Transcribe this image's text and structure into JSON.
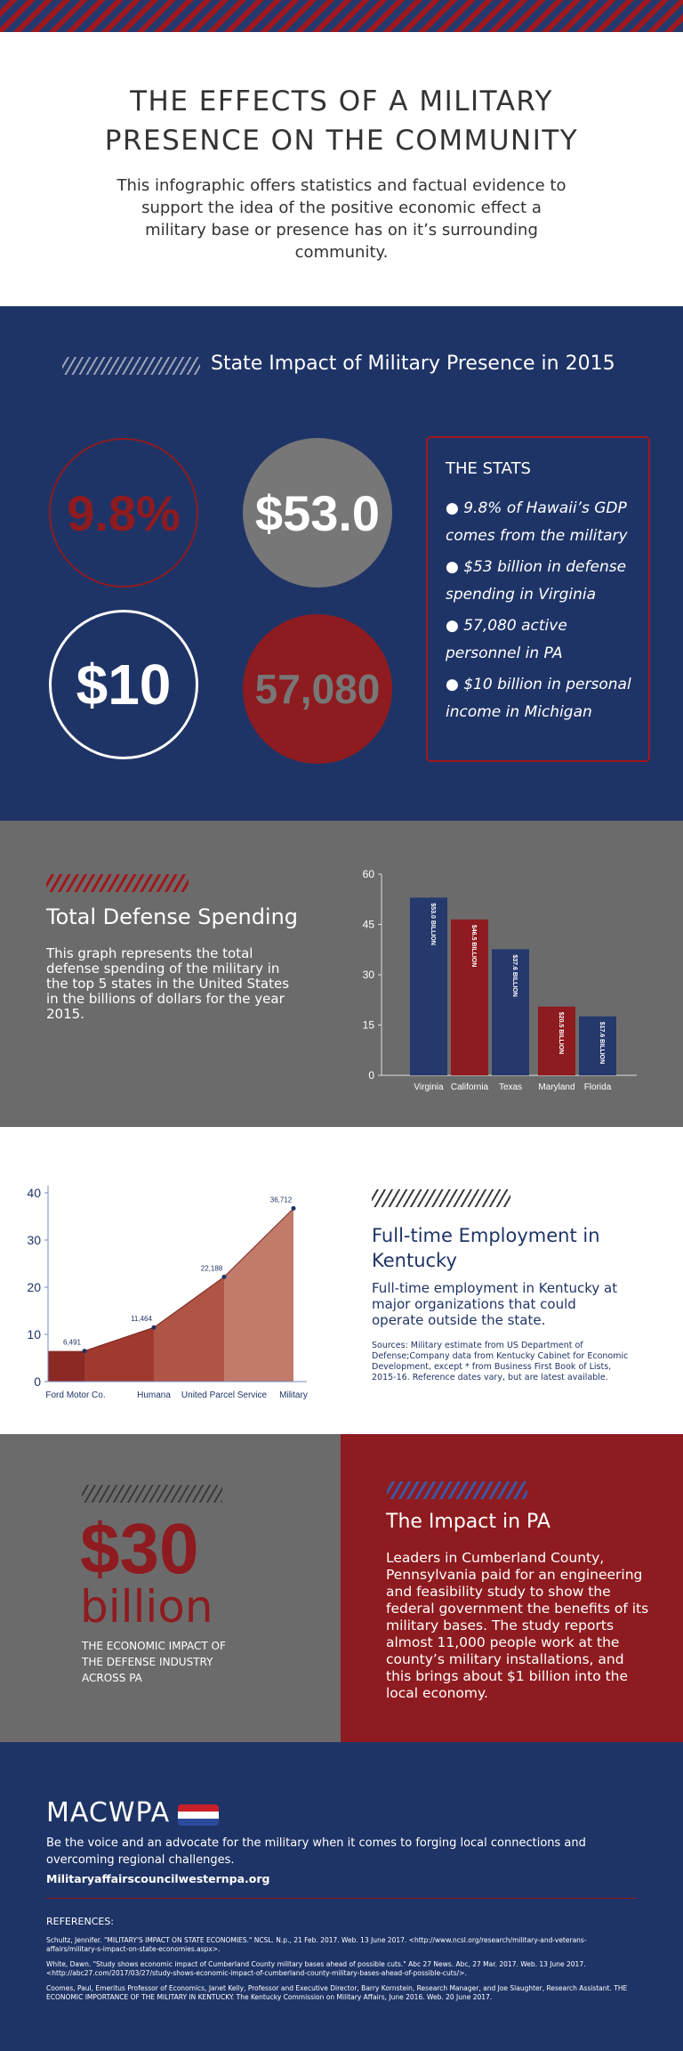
{
  "header": {
    "title": "THE EFFECTS OF A MILITARY PRESENCE ON THE COMMUNITY",
    "intro": "This infographic offers statistics and factual evidence to support the idea of the positive economic effect a military base or presence has on it’s surrounding community."
  },
  "state_impact": {
    "heading": "State Impact of Military Presence in 2015",
    "circles": [
      "9.8%",
      "$53.0",
      "$10",
      "57,080"
    ],
    "stats_title": "THE STATS",
    "stats": [
      "● 9.8% of Hawaii’s GDP comes from the military",
      "● $53 billion in defense spending in Virginia",
      "● 57,080 active personnel in PA",
      "● $10 billion in personal income in Michigan"
    ]
  },
  "defense": {
    "title": "Total Defense Spending",
    "text": "This graph represents the total defense spending of the military in the top 5 states in the United  States in the billions of dollars for the year 2015."
  },
  "chart_data": [
    {
      "type": "bar",
      "categories": [
        "Virginia",
        "California",
        "Texas",
        "Maryland",
        "Florida"
      ],
      "values": [
        53.0,
        46.5,
        37.6,
        20.5,
        17.6
      ],
      "value_labels": [
        "$53.0 BILLION",
        "$46.5 BILLION",
        "$37.6 BILLION",
        "$20.5 BILLION",
        "$17.6 BILLION"
      ],
      "colors": [
        "#25396d",
        "#8e1b1f",
        "#25396d",
        "#8e1b1f",
        "#25396d"
      ],
      "ylim": [
        0,
        60
      ],
      "yticks": [
        0,
        15,
        30,
        45,
        60
      ]
    },
    {
      "type": "area",
      "categories": [
        "Ford Motor Co.",
        "Humana",
        "United Parcel Service",
        "Military"
      ],
      "values": [
        6.491,
        11.464,
        22.188,
        36.712
      ],
      "value_labels": [
        "6,491",
        "11,464",
        "22,188",
        "36,712"
      ],
      "colors": [
        "#8b2a24",
        "#a03a2f",
        "#b05545",
        "#c27b6a"
      ],
      "ylim": [
        0,
        40
      ],
      "yticks": [
        0,
        10,
        20,
        30,
        40
      ]
    }
  ],
  "employment": {
    "title": "Full-time Employment in Kentucky",
    "text": "Full-time employment in Kentucky at major organizations that could operate outside the state.",
    "sources": "Sources: Military estimate from US Department of Defense;Company data from Kentucky Cabinet for Economic Development, except * from Business First Book of Lists, 2015-16. Reference dates vary, but are latest available."
  },
  "pa": {
    "amount": "$30",
    "unit": "billion",
    "caption": "THE ECONOMIC IMPACT OF THE DEFENSE INDUSTRY ACROSS PA",
    "title": "The Impact in PA",
    "text": "Leaders in Cumberland County, Pennsylvania paid for an engineering and feasibility study to show the federal government the benefits of its military bases. The study reports almost 11,000 people work at the county’s military installations, and this brings about $1 billion into the local economy."
  },
  "footer": {
    "logo": "MACWPA",
    "tagline": "Be the voice and an advocate for the military when it comes to forging local connections and overcoming regional challenges.",
    "url": "Militaryaffairscouncilwesternpa.org",
    "references_title": "REFERENCES:",
    "references": [
      "Schultz, Jennifer. \"MILITARY'S IMPACT ON STATE ECONOMIES.\" NCSL. N.p., 21 Feb. 2017. Web. 13 June 2017. <http://www.ncsl.org/research/military-and-veterans-affairs/military-s-impact-on-state-economies.aspx>.",
      "White, Dawn. \"Study shows economic impact of Cumberland County military bases ahead of possible cuts.\" Abc 27 News. Abc, 27 Mar. 2017. Web. 13 June 2017. <http://abc27.com/2017/03/27/study-shows-economic-impact-of-cumberland-county-military-bases-ahead-of-possible-cuts/>.",
      "Coomes, Paul, Emeritus Professor of Economics, Janet Kelly, Professor and Executive Director, Barry Kornstein, Research Manager, and Joe Slaughter, Research Assistant. THE ECONOMIC IMPORTANCE OF THE MILITARY IN KENTUCKY. The Kentucky Commission on Military Affairs, June 2016. Web. 20 June 2017."
    ]
  }
}
